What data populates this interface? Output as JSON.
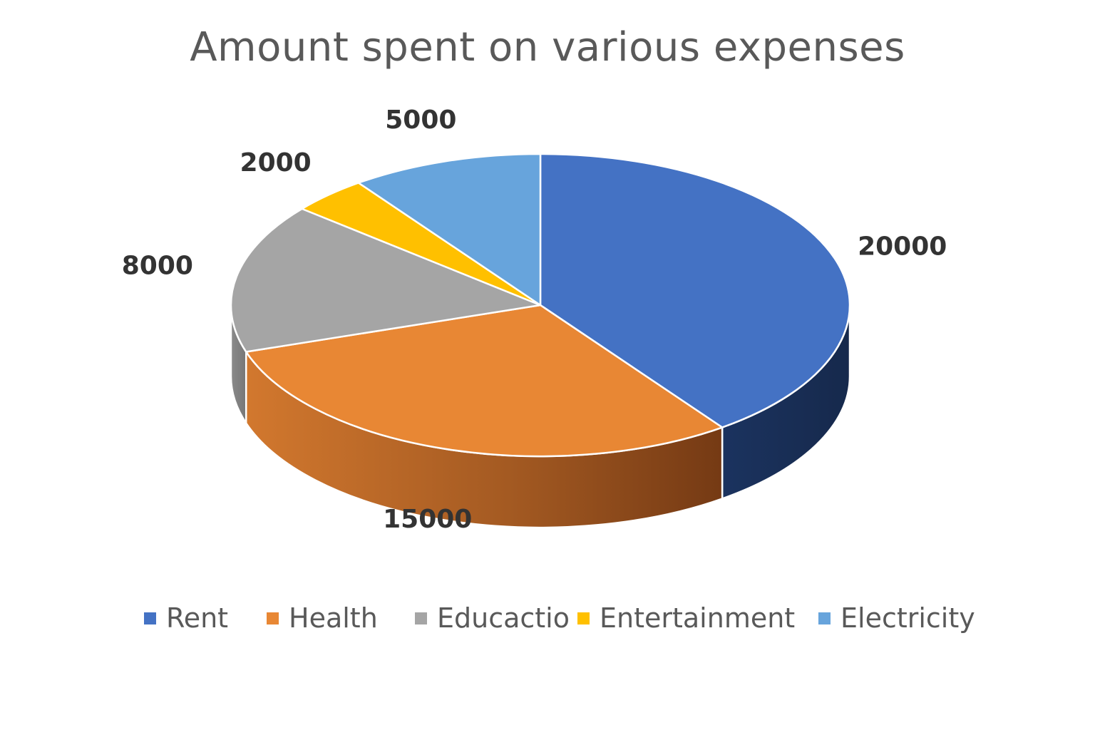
{
  "chart_data": {
    "type": "pie",
    "title": "Amount spent on various expenses",
    "categories": [
      "Rent",
      "Health",
      "Educaction",
      "Entertainment",
      "Electricity"
    ],
    "values": [
      20000,
      15000,
      8000,
      2000,
      5000
    ],
    "data_labels": [
      "20000",
      "15000",
      "8000",
      "2000",
      "5000"
    ],
    "colors": [
      "#4472C4",
      "#E88734",
      "#A5A5A5",
      "#FFC000",
      "#67A4DC"
    ],
    "style": "3d",
    "legend_position": "bottom"
  }
}
